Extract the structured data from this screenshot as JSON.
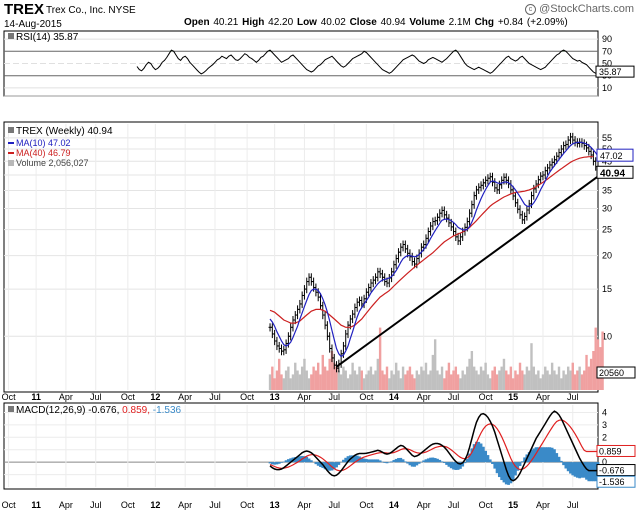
{
  "header": {
    "symbol": "TREX",
    "company": "Trex Co., Inc. NYSE",
    "date": "14-Aug-2015",
    "open_label": "Open",
    "open": "40.21",
    "high_label": "High",
    "high": "42.20",
    "low_label": "Low",
    "low": "40.02",
    "close_label": "Close",
    "close": "40.94",
    "volume_label": "Volume",
    "volume": "2.1M",
    "chg_label": "Chg",
    "chg": "+0.84 (+2.09%)",
    "watermark": "@StockCharts.com",
    "watermark_symbol": "c"
  },
  "colors": {
    "price": "#000000",
    "ma10": "#2020c0",
    "ma40": "#cc2020",
    "volume_up": "#c0c0c0",
    "volume_down": "#f0a0a0",
    "trendline": "#000000",
    "rsi_fill": "#3a7a3a",
    "macd_line": "#000000",
    "signal_line": "#e02020",
    "histogram": "#3a8ac8"
  },
  "chart_data": [
    {
      "type": "line",
      "id": "rsi",
      "legend": "RSI(14) 35.87",
      "ylim": [
        0,
        100
      ],
      "ticks": [
        10,
        30,
        50,
        70,
        90
      ],
      "tick_labels": [
        "10",
        "30",
        "50",
        "70",
        "90"
      ],
      "overbought": 70,
      "oversold": 30,
      "current_label": "35.87",
      "values": [
        45,
        40,
        38,
        42,
        48,
        52,
        50,
        44,
        40,
        42,
        46,
        52,
        55,
        60,
        66,
        72,
        70,
        64,
        58,
        55,
        60,
        62,
        58,
        52,
        48,
        44,
        40,
        36,
        33,
        35,
        38,
        42,
        45,
        48,
        52,
        56,
        58,
        62,
        60,
        58,
        62,
        64,
        60,
        56,
        55,
        58,
        62,
        66,
        64,
        60,
        58,
        55,
        52,
        55,
        60,
        62,
        66,
        70,
        72,
        68,
        64,
        60,
        56,
        52,
        54,
        56,
        58,
        62,
        64,
        60,
        56,
        52,
        48,
        44,
        40,
        38,
        36,
        38,
        42,
        46,
        48,
        52,
        56,
        58,
        60,
        62,
        58,
        54,
        50,
        46,
        44,
        46,
        50,
        54,
        58,
        60,
        62,
        64,
        66,
        70,
        68,
        64,
        60,
        56,
        52,
        48,
        44,
        40,
        38,
        36,
        34,
        36,
        40,
        44,
        48,
        52,
        56,
        58,
        60,
        62,
        64,
        62,
        58,
        54,
        52,
        50,
        52,
        56,
        58,
        60,
        58,
        56,
        54,
        52,
        55,
        58,
        62,
        66,
        70,
        72,
        68,
        62,
        56,
        50,
        46,
        44,
        42,
        40,
        42,
        44,
        42,
        40,
        38,
        36,
        34,
        36,
        40,
        44,
        48,
        52,
        56,
        60,
        62,
        58,
        56,
        54,
        56,
        60,
        62,
        58,
        54,
        50,
        48,
        46,
        44,
        42,
        40,
        42,
        44,
        48,
        52,
        56,
        60,
        64,
        66,
        70,
        72,
        70,
        66,
        62,
        58,
        56,
        54,
        55,
        52,
        50,
        48,
        44,
        40,
        36,
        34,
        35.87
      ]
    },
    {
      "type": "line",
      "id": "price",
      "legend_price": "TREX (Weekly) 40.94",
      "legend_ma10": "MA(10) 47.02",
      "legend_ma40": "MA(40) 46.79",
      "legend_volume": "Volume 2,056,027",
      "scale": "log",
      "ylim": [
        6.3,
        62
      ],
      "ticks": [
        10,
        15,
        20,
        25,
        30,
        35,
        40,
        45,
        50,
        55
      ],
      "tick_labels": [
        "10",
        "15",
        "20",
        "25",
        "30",
        "35",
        "40",
        "45",
        "50",
        "55"
      ],
      "last_close_label": "40.94",
      "ma10_label": "47.02",
      "volume_label": "20560",
      "close": [
        10.8,
        10.2,
        9.6,
        9.2,
        9.0,
        8.8,
        8.9,
        9.4,
        10.0,
        10.8,
        11.5,
        12.0,
        12.6,
        13.2,
        14.2,
        15.0,
        16.0,
        16.6,
        16.0,
        15.2,
        14.6,
        14.0,
        13.0,
        12.0,
        11.0,
        10.0,
        9.0,
        8.3,
        7.8,
        7.6,
        7.9,
        8.6,
        9.2,
        10.2,
        11.0,
        11.6,
        12.1,
        12.8,
        13.4,
        13.6,
        13.2,
        13.8,
        14.6,
        15.2,
        15.8,
        16.2,
        16.6,
        17.4,
        17.1,
        16.6,
        16.0,
        15.8,
        16.5,
        17.4,
        18.5,
        19.5,
        20.6,
        21.5,
        22.0,
        21.2,
        20.4,
        19.8,
        19.0,
        18.6,
        19.5,
        20.4,
        21.5,
        22.0,
        23.2,
        24.6,
        25.8,
        26.8,
        27.0,
        27.8,
        28.8,
        29.5,
        28.4,
        27.6,
        26.5,
        25.6,
        24.6,
        23.5,
        22.7,
        23.5,
        24.6,
        25.5,
        26.8,
        28.8,
        31.0,
        33.5,
        35.2,
        36.0,
        36.6,
        37.4,
        38.2,
        38.9,
        39.4,
        37.6,
        35.8,
        35.2,
        36.8,
        38.2,
        39.2,
        38.2,
        37.0,
        35.2,
        33.4,
        31.5,
        29.8,
        28.4,
        27.2,
        28.0,
        29.6,
        31.2,
        33.5,
        35.5,
        37.0,
        38.4,
        39.6,
        40.0,
        41.5,
        42.5,
        43.6,
        44.6,
        45.6,
        47.0,
        48.5,
        50.0,
        51.5,
        52.0,
        54.0,
        55.5,
        54.0,
        53.0,
        52.5,
        53.0,
        52.5,
        51.5,
        50.5,
        49.0,
        47.5,
        45.0,
        43.0,
        40.94
      ],
      "ma10": [
        11.6,
        11.3,
        10.9,
        10.4,
        10.0,
        9.6,
        9.3,
        9.2,
        9.3,
        9.5,
        9.9,
        10.4,
        10.9,
        11.6,
        12.2,
        12.9,
        13.6,
        14.3,
        14.8,
        15.0,
        15.0,
        14.8,
        14.4,
        13.8,
        13.1,
        12.3,
        11.4,
        10.5,
        9.7,
        9.0,
        8.6,
        8.4,
        8.5,
        8.8,
        9.2,
        9.8,
        10.4,
        11.1,
        11.8,
        12.4,
        12.8,
        13.2,
        13.6,
        14.0,
        14.5,
        14.9,
        15.3,
        15.7,
        16.0,
        16.2,
        16.3,
        16.4,
        16.5,
        16.7,
        17.1,
        17.6,
        18.2,
        18.9,
        19.5,
        19.8,
        20.0,
        20.0,
        19.9,
        19.8,
        19.9,
        20.2,
        20.6,
        21.1,
        21.6,
        22.3,
        23.2,
        24.0,
        24.8,
        25.6,
        26.4,
        27.1,
        27.3,
        27.4,
        27.3,
        27.0,
        26.6,
        26.1,
        25.5,
        25.2,
        25.0,
        24.9,
        25.1,
        25.7,
        26.7,
        28.0,
        29.6,
        31.1,
        32.6,
        34.0,
        35.3,
        36.5,
        37.6,
        38.0,
        37.8,
        37.4,
        37.2,
        37.3,
        37.6,
        37.7,
        37.4,
        36.9,
        36.1,
        35.2,
        34.2,
        33.2,
        32.1,
        31.1,
        30.6,
        30.5,
        30.8,
        31.5,
        32.5,
        33.8,
        35.3,
        36.6,
        38.0,
        39.6,
        41.0,
        42.2,
        43.3,
        44.5,
        45.7,
        46.9,
        48.1,
        49.2,
        50.4,
        51.5,
        52.3,
        52.7,
        52.9,
        53.0,
        52.9,
        52.6,
        52.2,
        51.6,
        50.7,
        49.6,
        48.4,
        47.02
      ],
      "ma40": [
        12.5,
        12.4,
        12.3,
        12.1,
        11.9,
        11.7,
        11.5,
        11.4,
        11.3,
        11.2,
        11.2,
        11.2,
        11.3,
        11.4,
        11.6,
        11.8,
        12.0,
        12.2,
        12.4,
        12.5,
        12.6,
        12.6,
        12.6,
        12.5,
        12.4,
        12.2,
        12.0,
        11.8,
        11.6,
        11.4,
        11.2,
        11.0,
        10.9,
        10.8,
        10.8,
        10.8,
        10.9,
        11.0,
        11.2,
        11.4,
        11.6,
        11.9,
        12.2,
        12.5,
        12.8,
        13.1,
        13.4,
        13.7,
        14.0,
        14.2,
        14.4,
        14.6,
        14.8,
        15.1,
        15.4,
        15.7,
        16.0,
        16.3,
        16.6,
        16.9,
        17.2,
        17.5,
        17.8,
        18.1,
        18.4,
        18.7,
        19.0,
        19.3,
        19.6,
        19.9,
        20.2,
        20.5,
        20.9,
        21.3,
        21.7,
        22.1,
        22.5,
        22.8,
        23.1,
        23.4,
        23.7,
        23.9,
        24.1,
        24.3,
        24.5,
        24.8,
        25.1,
        25.5,
        26.0,
        26.5,
        27.0,
        27.6,
        28.2,
        28.8,
        29.4,
        30.0,
        30.6,
        31.1,
        31.5,
        31.9,
        32.3,
        32.7,
        33.1,
        33.4,
        33.7,
        34.0,
        34.2,
        34.4,
        34.5,
        34.6,
        34.7,
        34.8,
        35.0,
        35.2,
        35.5,
        35.8,
        36.2,
        36.6,
        37.1,
        37.6,
        38.1,
        38.6,
        39.2,
        39.8,
        40.4,
        41.0,
        41.6,
        42.2,
        42.8,
        43.4,
        44.0,
        44.6,
        45.1,
        45.5,
        45.9,
        46.2,
        46.4,
        46.6,
        46.7,
        46.8,
        46.8,
        46.79
      ],
      "volume_relative": [
        0.4,
        0.6,
        0.3,
        0.5,
        0.8,
        0.4,
        0.3,
        0.5,
        0.6,
        0.3,
        0.4,
        0.7,
        0.5,
        0.4,
        0.6,
        0.8,
        0.5,
        0.3,
        0.4,
        0.6,
        0.5,
        0.7,
        0.4,
        0.9,
        0.6,
        0.5,
        0.8,
        1.0,
        0.7,
        0.6,
        0.5,
        0.4,
        0.6,
        0.5,
        0.3,
        0.4,
        0.7,
        0.5,
        0.4,
        0.6,
        0.5,
        0.3,
        0.4,
        0.5,
        0.6,
        0.4,
        0.5,
        0.8,
        1.6,
        0.5,
        0.4,
        0.6,
        0.3,
        0.5,
        0.4,
        0.7,
        0.5,
        0.3,
        0.6,
        0.4,
        0.5,
        0.6,
        0.4,
        0.3,
        0.5,
        0.4,
        0.6,
        0.5,
        0.7,
        0.4,
        0.5,
        0.9,
        1.3,
        0.5,
        0.4,
        0.6,
        0.3,
        0.5,
        0.7,
        0.4,
        0.5,
        0.6,
        0.4,
        0.3,
        0.5,
        0.4,
        0.6,
        0.8,
        1.0,
        0.6,
        0.5,
        0.4,
        0.6,
        0.5,
        0.7,
        0.4,
        0.3,
        0.5,
        0.6,
        0.4,
        0.5,
        0.6,
        0.8,
        0.5,
        0.4,
        0.6,
        0.3,
        0.5,
        0.4,
        0.7,
        0.5,
        0.4,
        0.6,
        0.5,
        1.2,
        0.6,
        0.4,
        0.5,
        0.3,
        0.4,
        0.6,
        0.5,
        0.4,
        0.7,
        0.5,
        0.4,
        0.6,
        0.3,
        0.5,
        0.4,
        0.6,
        0.5,
        0.7,
        0.4,
        0.5,
        0.6,
        0.4,
        0.5,
        0.9,
        0.6,
        0.8,
        1.0,
        1.6,
        1.3,
        1.1,
        1.5
      ],
      "trendline": [
        [
          29,
          7.7
        ],
        [
          145,
          40.94
        ]
      ]
    },
    {
      "type": "line",
      "id": "macd",
      "legend_label": "MACD(12,26,9)",
      "legend_macd": "-0.676,",
      "legend_signal": "0.859,",
      "legend_hist": "-1.536",
      "ylim": [
        -2.0,
        4.6
      ],
      "ticks": [
        -1,
        0,
        1,
        2,
        3,
        4
      ],
      "tick_labels": [
        "-1",
        "0",
        "1",
        "2",
        "3",
        "4"
      ],
      "signal_label": "0.859",
      "macd_label": "-0.676",
      "hist_label": "-1.536",
      "macd": [
        -0.3,
        -0.45,
        -0.55,
        -0.6,
        -0.6,
        -0.55,
        -0.45,
        -0.3,
        -0.15,
        0.0,
        0.15,
        0.3,
        0.45,
        0.6,
        0.75,
        0.85,
        0.9,
        0.85,
        0.75,
        0.6,
        0.4,
        0.2,
        0.0,
        -0.2,
        -0.45,
        -0.7,
        -0.9,
        -1.05,
        -1.1,
        -1.05,
        -0.9,
        -0.7,
        -0.45,
        -0.2,
        0.05,
        0.25,
        0.4,
        0.55,
        0.65,
        0.7,
        0.7,
        0.7,
        0.72,
        0.75,
        0.8,
        0.85,
        0.9,
        0.95,
        0.9,
        0.8,
        0.7,
        0.65,
        0.7,
        0.8,
        0.95,
        1.1,
        1.25,
        1.35,
        1.3,
        1.15,
        0.95,
        0.75,
        0.55,
        0.45,
        0.5,
        0.6,
        0.75,
        0.9,
        1.05,
        1.2,
        1.35,
        1.45,
        1.5,
        1.5,
        1.45,
        1.35,
        1.2,
        1.0,
        0.75,
        0.5,
        0.25,
        0.05,
        -0.1,
        -0.15,
        -0.05,
        0.2,
        0.6,
        1.2,
        1.9,
        2.6,
        3.2,
        3.6,
        3.85,
        3.9,
        3.8,
        3.6,
        3.3,
        2.9,
        2.4,
        1.8,
        1.2,
        0.6,
        0.0,
        -0.6,
        -1.1,
        -1.4,
        -1.5,
        -1.4,
        -1.2,
        -0.9,
        -0.5,
        -0.1,
        0.3,
        0.7,
        1.1,
        1.5,
        1.9,
        2.2,
        2.5,
        2.8,
        3.1,
        3.4,
        3.7,
        3.95,
        4.1,
        4.0,
        3.8,
        3.5,
        3.1,
        2.7,
        2.3,
        1.9,
        1.5,
        1.1,
        0.7,
        0.3,
        0.0,
        -0.3,
        -0.55,
        -0.676,
        -0.676,
        -0.676,
        -0.676,
        -0.676
      ],
      "signal": [
        -0.2,
        -0.27,
        -0.35,
        -0.42,
        -0.47,
        -0.5,
        -0.49,
        -0.45,
        -0.39,
        -0.31,
        -0.22,
        -0.11,
        0.0,
        0.12,
        0.25,
        0.37,
        0.48,
        0.56,
        0.6,
        0.6,
        0.56,
        0.49,
        0.39,
        0.27,
        0.12,
        -0.04,
        -0.21,
        -0.38,
        -0.52,
        -0.63,
        -0.68,
        -0.69,
        -0.64,
        -0.55,
        -0.43,
        -0.29,
        -0.15,
        -0.01,
        0.12,
        0.24,
        0.33,
        0.41,
        0.47,
        0.53,
        0.58,
        0.63,
        0.68,
        0.73,
        0.76,
        0.77,
        0.76,
        0.74,
        0.73,
        0.74,
        0.78,
        0.84,
        0.92,
        1.01,
        1.07,
        1.09,
        1.06,
        1.0,
        0.91,
        0.82,
        0.76,
        0.73,
        0.73,
        0.76,
        0.82,
        0.9,
        0.99,
        1.08,
        1.17,
        1.23,
        1.27,
        1.29,
        1.27,
        1.22,
        1.12,
        0.99,
        0.84,
        0.68,
        0.52,
        0.39,
        0.3,
        0.28,
        0.34,
        0.51,
        0.79,
        1.15,
        1.56,
        1.97,
        2.35,
        2.66,
        2.89,
        3.03,
        3.08,
        3.05,
        2.92,
        2.69,
        2.4,
        2.04,
        1.63,
        1.19,
        0.73,
        0.3,
        -0.06,
        -0.33,
        -0.51,
        -0.59,
        -0.57,
        -0.48,
        -0.32,
        -0.11,
        0.13,
        0.4,
        0.7,
        1.0,
        1.3,
        1.6,
        1.9,
        2.2,
        2.5,
        2.79,
        3.06,
        3.27,
        3.37,
        3.4,
        3.34,
        3.21,
        3.03,
        2.82,
        2.56,
        2.27,
        1.95,
        1.6,
        1.25,
        0.95,
        0.859,
        0.859,
        0.859,
        0.859,
        0.859,
        0.859
      ]
    }
  ],
  "xaxis": {
    "labels": [
      "Oct",
      "11",
      "Apr",
      "Jul",
      "Oct",
      "12",
      "Apr",
      "Jul",
      "Oct",
      "13",
      "Apr",
      "Jul",
      "Oct",
      "14",
      "Apr",
      "Jul",
      "Oct",
      "15",
      "Apr",
      "Jul"
    ],
    "weeks": [
      2,
      14,
      27,
      40,
      54,
      66,
      79,
      92,
      106,
      118,
      131,
      144,
      158,
      170,
      183,
      196,
      210,
      222,
      235,
      248
    ],
    "bold": [
      "11",
      "12",
      "13",
      "14",
      "15"
    ],
    "total_weeks": 260
  }
}
